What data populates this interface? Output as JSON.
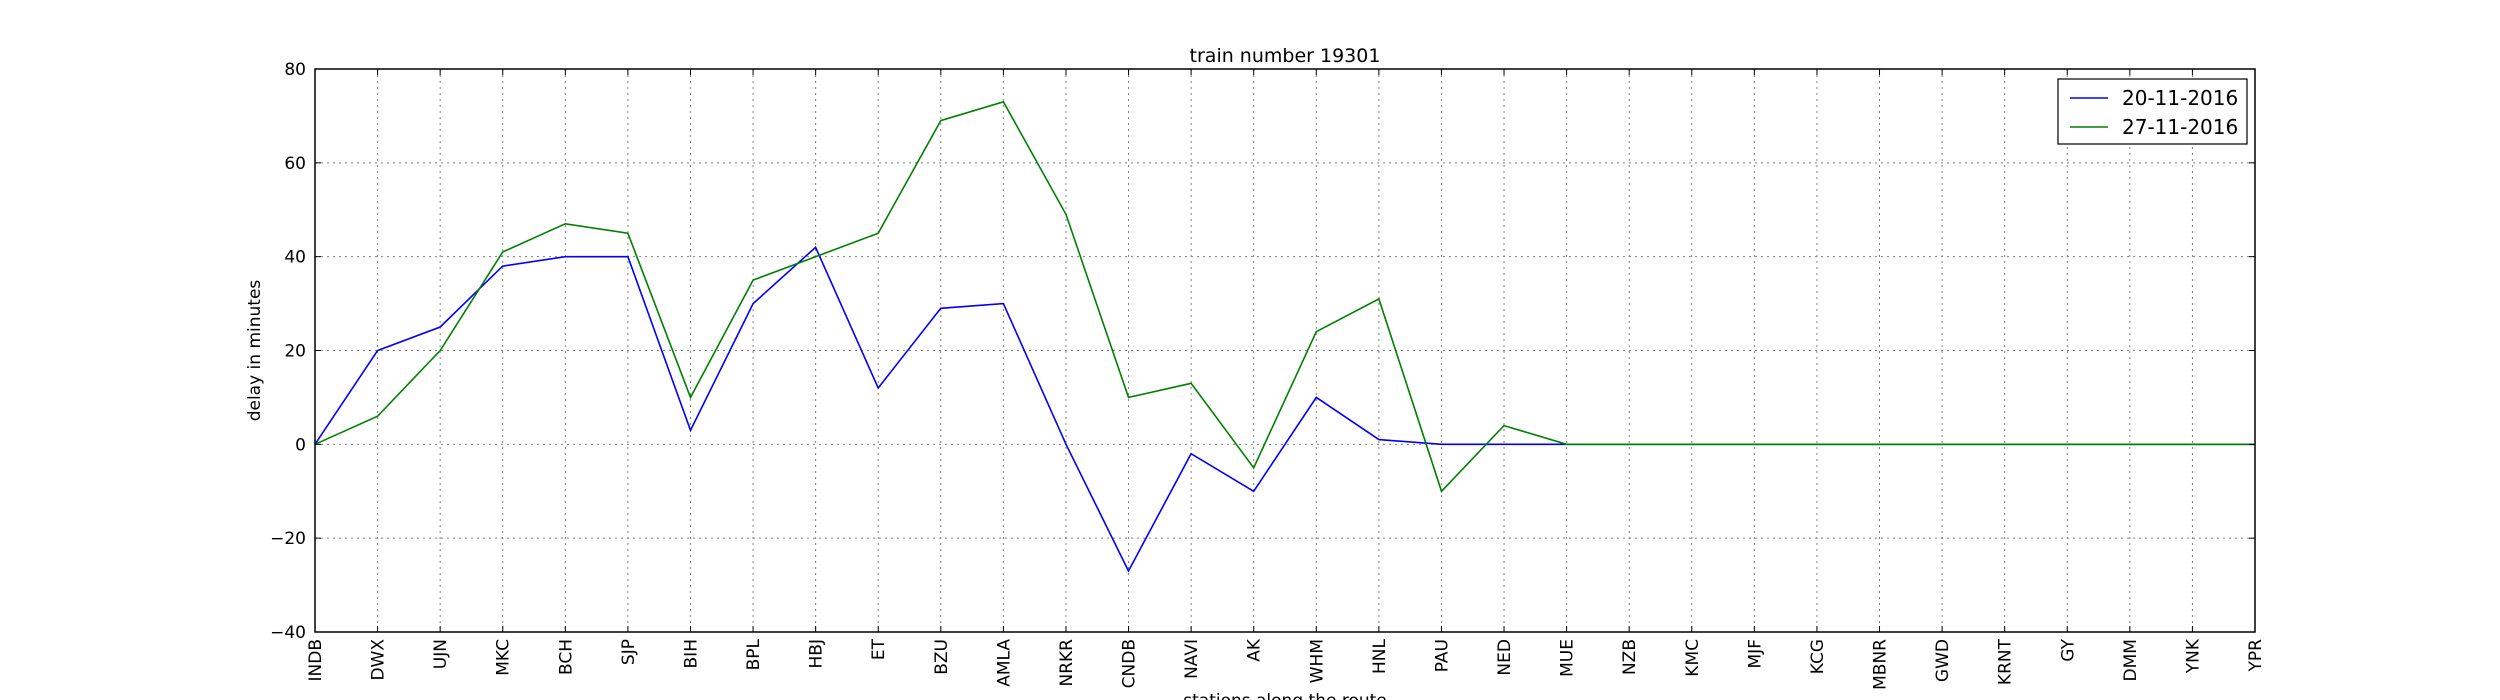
{
  "chart_data": {
    "type": "line",
    "title": "train number 19301",
    "xlabel": "stations along the route",
    "ylabel": "delay in minutes",
    "ylim": [
      -40,
      80
    ],
    "yticks": [
      -40,
      -20,
      0,
      20,
      40,
      60,
      80
    ],
    "ytick_labels": [
      "−40",
      "−20",
      "0",
      "20",
      "40",
      "60",
      "80"
    ],
    "grid": true,
    "legend_position": "top-right",
    "categories": [
      "INDB",
      "DWX",
      "UJN",
      "MKC",
      "BCH",
      "SJP",
      "BIH",
      "BPL",
      "HBJ",
      "ET",
      "BZU",
      "AMLA",
      "NRKR",
      "CNDB",
      "NAVI",
      "AK",
      "WHM",
      "HNL",
      "PAU",
      "NED",
      "MUE",
      "NZB",
      "KMC",
      "MJF",
      "KCG",
      "MBNR",
      "GWD",
      "KRNT",
      "GY",
      "DMM",
      "YNK",
      "YPR"
    ],
    "series": [
      {
        "name": "20-11-2016",
        "color": "#0000ff",
        "values": [
          0,
          20,
          25,
          38,
          40,
          40,
          3,
          30,
          42,
          12,
          29,
          30,
          0,
          -27,
          -2,
          -10,
          10,
          1,
          0,
          0,
          0,
          0,
          0,
          0,
          0,
          0,
          0,
          0,
          0,
          0,
          0,
          0
        ]
      },
      {
        "name": "27-11-2016",
        "color": "#008000",
        "values": [
          0,
          6,
          20,
          41,
          47,
          45,
          10,
          35,
          40,
          45,
          69,
          73,
          49,
          10,
          13,
          -5,
          24,
          31,
          -10,
          4,
          0,
          0,
          0,
          0,
          0,
          0,
          0,
          0,
          0,
          0,
          0,
          0
        ]
      }
    ]
  }
}
